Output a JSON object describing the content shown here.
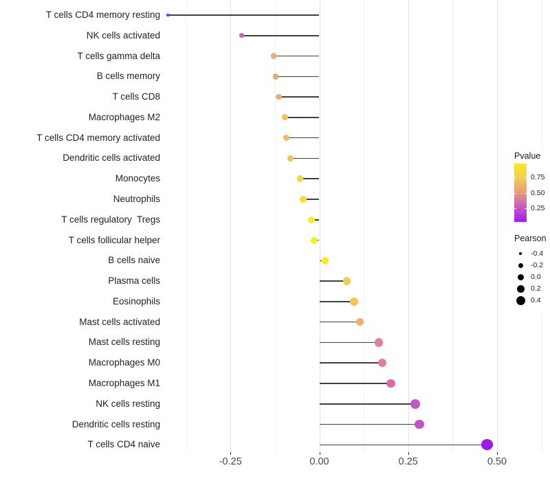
{
  "chart_data": {
    "type": "scatter",
    "variant": "lollipop",
    "title": "",
    "xlabel": "",
    "ylabel": "",
    "xlim": [
      -0.435,
      0.65
    ],
    "x_ticks": [
      -0.25,
      0.0,
      0.25,
      0.5
    ],
    "x_tick_labels": [
      "-0.25",
      "0.00",
      "0.25",
      "0.50"
    ],
    "x_minor_gridlines": [
      -0.375,
      -0.125,
      0.125,
      0.375,
      0.625
    ],
    "grid": "vertical-only",
    "baseline_x": 0.0,
    "points": [
      {
        "label": "T cells CD4 memory resting",
        "pearson": -0.425,
        "color": "#8e2be8"
      },
      {
        "label": "NK cells activated",
        "pearson": -0.218,
        "color": "#c667ae"
      },
      {
        "label": "T cells gamma delta",
        "pearson": -0.129,
        "color": "#ecab76"
      },
      {
        "label": "B cells memory",
        "pearson": -0.123,
        "color": "#ecab74"
      },
      {
        "label": "T cells CD8",
        "pearson": -0.114,
        "color": "#edad6e"
      },
      {
        "label": "Macrophages M2",
        "pearson": -0.097,
        "color": "#f1c05e"
      },
      {
        "label": "T cells CD4 memory activated",
        "pearson": -0.092,
        "color": "#efba64"
      },
      {
        "label": "Dendritic cells activated",
        "pearson": -0.081,
        "color": "#f1c35c"
      },
      {
        "label": "Monocytes",
        "pearson": -0.054,
        "color": "#f4d746"
      },
      {
        "label": "Neutrophils",
        "pearson": -0.045,
        "color": "#f5dc3e"
      },
      {
        "label": "T cells regulatory  Tregs",
        "pearson": -0.022,
        "color": "#f8ec28"
      },
      {
        "label": "T cells follicular helper",
        "pearson": -0.014,
        "color": "#f8ed26"
      },
      {
        "label": "B cells naive",
        "pearson": 0.017,
        "color": "#f7ea2b"
      },
      {
        "label": "Plasma cells",
        "pearson": 0.078,
        "color": "#f2ce4e"
      },
      {
        "label": "Eosinophils",
        "pearson": 0.098,
        "color": "#f0c55c"
      },
      {
        "label": "Mast cells activated",
        "pearson": 0.114,
        "color": "#efb167"
      },
      {
        "label": "Mast cells resting",
        "pearson": 0.167,
        "color": "#e18398"
      },
      {
        "label": "Macrophages M0",
        "pearson": 0.177,
        "color": "#e07e9d"
      },
      {
        "label": "Macrophages M1",
        "pearson": 0.201,
        "color": "#d76ba4"
      },
      {
        "label": "NK cells resting",
        "pearson": 0.27,
        "color": "#c456c8"
      },
      {
        "label": "Dendritic cells resting",
        "pearson": 0.281,
        "color": "#c253cb"
      },
      {
        "label": "T cells CD4 naive",
        "pearson": 0.472,
        "color": "#9c1de2"
      }
    ],
    "legend": {
      "pvalue": {
        "title": "Pvalue",
        "tick_labels": [
          "0.75",
          "0.50",
          "0.25"
        ],
        "tick_fractions_from_top": [
          0.235,
          0.5,
          0.765
        ],
        "gradient_top_color": "#f8e727",
        "gradient_bottom_color": "#a01fe6"
      },
      "pearson": {
        "title": "Pearson",
        "items": [
          {
            "label": "-0.4",
            "diameter": 4.6
          },
          {
            "label": "-0.2",
            "diameter": 7.0
          },
          {
            "label": "0.0",
            "diameter": 9.0
          },
          {
            "label": "0.2",
            "diameter": 11.0
          },
          {
            "label": "0.4",
            "diameter": 13.0
          }
        ]
      }
    }
  }
}
